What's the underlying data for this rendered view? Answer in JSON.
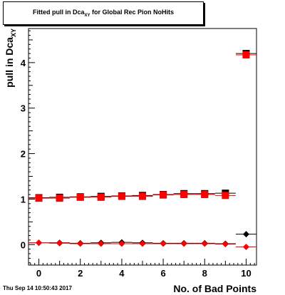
{
  "title_main": "Fitted pull in Dca",
  "title_sub": "XY",
  "title_rest": " for Global Rec Pion NoHits",
  "footer_timestamp": "Thu Sep 14 10:50:43 2017",
  "colors": {
    "black": "#000000",
    "red": "#ff0000"
  },
  "chart_data": {
    "type": "scatter",
    "title": "Fitted pull in Dca_XY for Global Rec Pion NoHits",
    "xlabel": "No. of Bad Points",
    "ylabel": "pull in Dca_XY",
    "xlim": [
      -0.5,
      10.5
    ],
    "ylim": [
      -0.45,
      4.75
    ],
    "x_ticks": [
      0,
      2,
      4,
      6,
      8,
      10
    ],
    "y_ticks": [
      0,
      1,
      2,
      3,
      4
    ],
    "grid": false,
    "x_error": 0.5,
    "series": [
      {
        "color": "black",
        "marker": "square",
        "x": [
          0,
          1,
          2,
          3,
          4,
          5,
          6,
          7,
          8,
          9,
          10
        ],
        "y": [
          1.03,
          1.04,
          1.05,
          1.06,
          1.07,
          1.08,
          1.1,
          1.12,
          1.12,
          1.13,
          4.2
        ]
      },
      {
        "color": "red",
        "marker": "square",
        "x": [
          0,
          1,
          2,
          3,
          4,
          5,
          6,
          7,
          8,
          9,
          10
        ],
        "y": [
          1.02,
          1.02,
          1.04,
          1.04,
          1.06,
          1.06,
          1.09,
          1.1,
          1.1,
          1.08,
          4.17
        ]
      },
      {
        "color": "black",
        "marker": "diamond",
        "x": [
          0,
          1,
          2,
          3,
          4,
          5,
          6,
          7,
          8,
          9,
          10
        ],
        "y": [
          0.04,
          0.04,
          0.03,
          0.04,
          0.05,
          0.04,
          0.03,
          0.03,
          0.03,
          0.02,
          0.23
        ]
      },
      {
        "color": "red",
        "marker": "diamond",
        "x": [
          0,
          1,
          2,
          3,
          4,
          5,
          6,
          7,
          8,
          9,
          10
        ],
        "y": [
          0.04,
          0.03,
          0.02,
          0.02,
          0.02,
          0.02,
          0.02,
          0.02,
          0.02,
          0.01,
          -0.05
        ]
      }
    ]
  }
}
